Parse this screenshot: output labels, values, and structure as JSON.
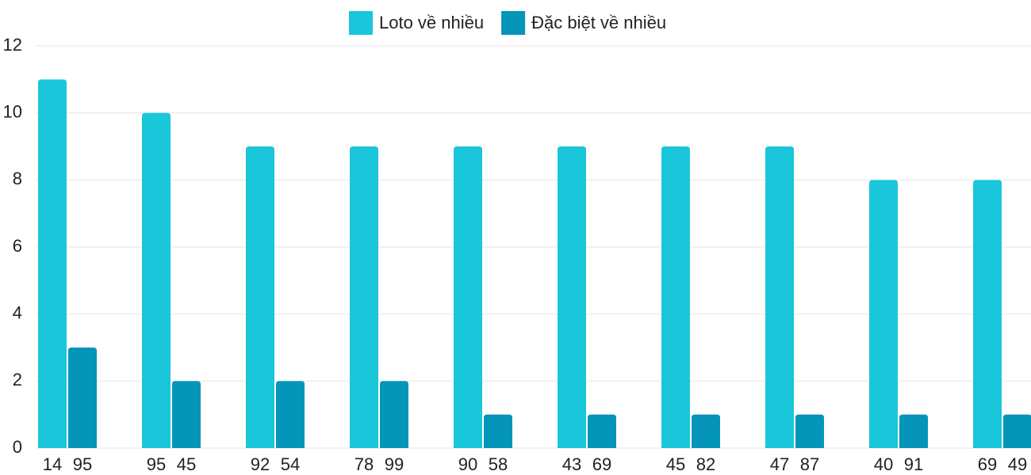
{
  "chart_data": {
    "type": "bar",
    "series": [
      {
        "name": "Loto về nhiều",
        "color": "#1ac6da",
        "values": [
          11,
          10,
          9,
          9,
          9,
          9,
          9,
          9,
          8,
          8
        ],
        "labels": [
          "14",
          "95",
          "92",
          "78",
          "90",
          "43",
          "45",
          "47",
          "40",
          "69"
        ]
      },
      {
        "name": "Đặc biệt về nhiều",
        "color": "#0595b8",
        "values": [
          3,
          2,
          2,
          2,
          1,
          1,
          1,
          1,
          1,
          1
        ],
        "labels": [
          "95",
          "45",
          "54",
          "99",
          "58",
          "69",
          "82",
          "87",
          "91",
          "49"
        ]
      }
    ],
    "ylim": [
      0,
      12
    ],
    "yticks": [
      0,
      2,
      4,
      6,
      8,
      10,
      12
    ],
    "grid": true,
    "legend": "top"
  }
}
